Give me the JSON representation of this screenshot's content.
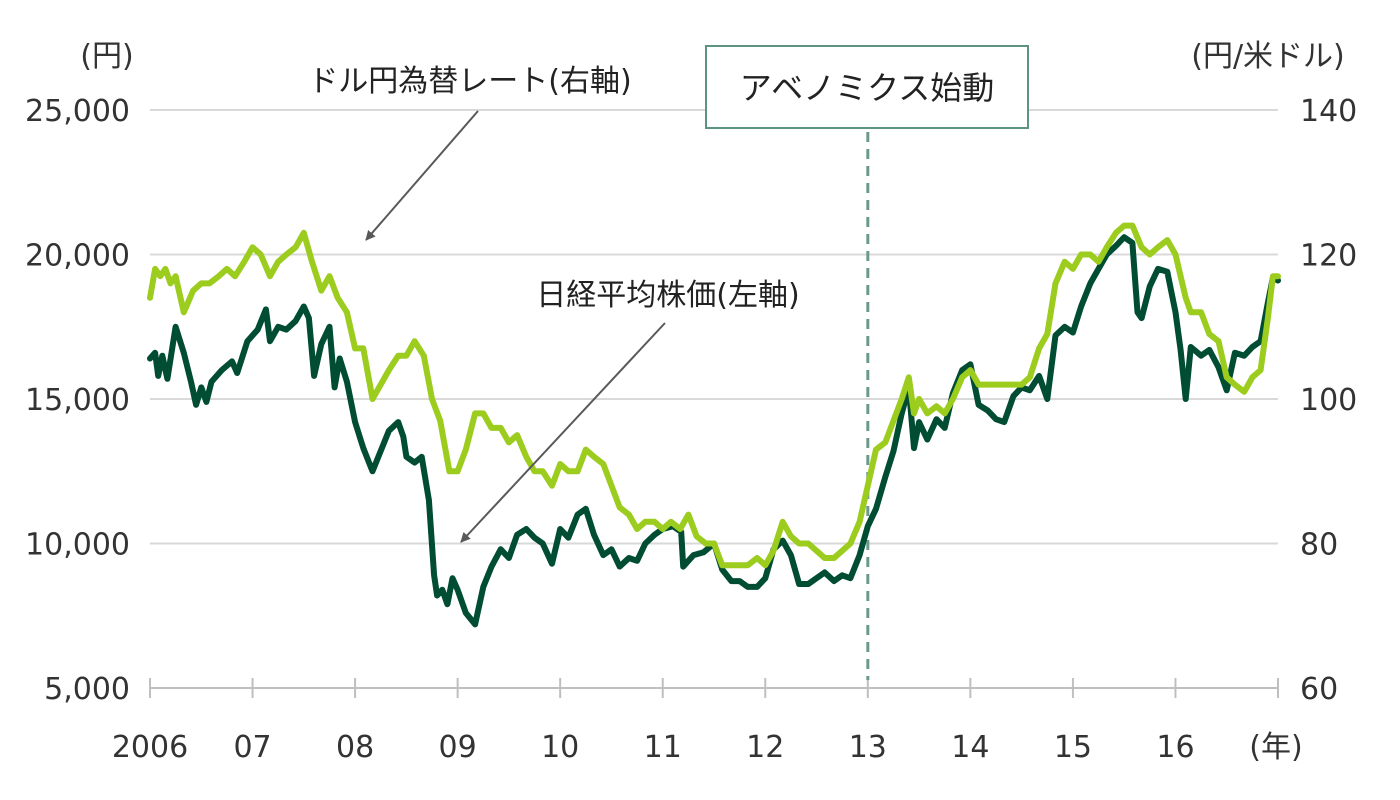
{
  "chart_data": {
    "type": "line",
    "x_unit": "(年)",
    "x_ticks": [
      "2006",
      "07",
      "08",
      "09",
      "10",
      "11",
      "12",
      "13",
      "14",
      "15",
      "16"
    ],
    "y_left": {
      "unit": "(円)",
      "ticks": [
        "5,000",
        "10,000",
        "15,000",
        "20,000",
        "25,000"
      ],
      "ylim": [
        5000,
        25000
      ]
    },
    "y_right": {
      "unit": "(円/米ドル)",
      "ticks": [
        "60",
        "80",
        "100",
        "120",
        "140"
      ],
      "ylim": [
        60,
        140
      ]
    },
    "grid": "horizontal",
    "series": [
      {
        "name": "日経平均株価(左軸)",
        "axis": "left",
        "color": "#004d33",
        "points": [
          [
            2006.0,
            16400
          ],
          [
            2006.05,
            16600
          ],
          [
            2006.08,
            15800
          ],
          [
            2006.12,
            16500
          ],
          [
            2006.17,
            15700
          ],
          [
            2006.25,
            17500
          ],
          [
            2006.33,
            16600
          ],
          [
            2006.4,
            15600
          ],
          [
            2006.45,
            14800
          ],
          [
            2006.5,
            15400
          ],
          [
            2006.55,
            14900
          ],
          [
            2006.6,
            15600
          ],
          [
            2006.7,
            16000
          ],
          [
            2006.8,
            16300
          ],
          [
            2006.85,
            15900
          ],
          [
            2006.95,
            17000
          ],
          [
            2007.05,
            17400
          ],
          [
            2007.13,
            18100
          ],
          [
            2007.17,
            17000
          ],
          [
            2007.25,
            17500
          ],
          [
            2007.33,
            17400
          ],
          [
            2007.42,
            17700
          ],
          [
            2007.5,
            18200
          ],
          [
            2007.55,
            17800
          ],
          [
            2007.6,
            15800
          ],
          [
            2007.67,
            16900
          ],
          [
            2007.75,
            17500
          ],
          [
            2007.8,
            15400
          ],
          [
            2007.85,
            16400
          ],
          [
            2007.92,
            15600
          ],
          [
            2008.0,
            14200
          ],
          [
            2008.08,
            13300
          ],
          [
            2008.17,
            12500
          ],
          [
            2008.25,
            13200
          ],
          [
            2008.33,
            13900
          ],
          [
            2008.42,
            14200
          ],
          [
            2008.47,
            13700
          ],
          [
            2008.5,
            13000
          ],
          [
            2008.58,
            12800
          ],
          [
            2008.65,
            13000
          ],
          [
            2008.72,
            11500
          ],
          [
            2008.77,
            8900
          ],
          [
            2008.8,
            8200
          ],
          [
            2008.85,
            8400
          ],
          [
            2008.9,
            7900
          ],
          [
            2008.95,
            8800
          ],
          [
            2009.0,
            8400
          ],
          [
            2009.08,
            7600
          ],
          [
            2009.17,
            7200
          ],
          [
            2009.25,
            8500
          ],
          [
            2009.33,
            9200
          ],
          [
            2009.42,
            9800
          ],
          [
            2009.5,
            9500
          ],
          [
            2009.58,
            10300
          ],
          [
            2009.67,
            10500
          ],
          [
            2009.75,
            10200
          ],
          [
            2009.83,
            10000
          ],
          [
            2009.92,
            9300
          ],
          [
            2010.0,
            10500
          ],
          [
            2010.08,
            10200
          ],
          [
            2010.17,
            11000
          ],
          [
            2010.25,
            11200
          ],
          [
            2010.33,
            10300
          ],
          [
            2010.42,
            9600
          ],
          [
            2010.5,
            9800
          ],
          [
            2010.58,
            9200
          ],
          [
            2010.67,
            9500
          ],
          [
            2010.75,
            9400
          ],
          [
            2010.83,
            10000
          ],
          [
            2010.92,
            10300
          ],
          [
            2011.0,
            10500
          ],
          [
            2011.1,
            10600
          ],
          [
            2011.18,
            10400
          ],
          [
            2011.2,
            9200
          ],
          [
            2011.3,
            9600
          ],
          [
            2011.4,
            9700
          ],
          [
            2011.5,
            10000
          ],
          [
            2011.58,
            9100
          ],
          [
            2011.67,
            8700
          ],
          [
            2011.75,
            8700
          ],
          [
            2011.83,
            8500
          ],
          [
            2011.92,
            8500
          ],
          [
            2012.0,
            8800
          ],
          [
            2012.08,
            9800
          ],
          [
            2012.17,
            10100
          ],
          [
            2012.25,
            9600
          ],
          [
            2012.33,
            8600
          ],
          [
            2012.42,
            8600
          ],
          [
            2012.5,
            8800
          ],
          [
            2012.58,
            9000
          ],
          [
            2012.67,
            8700
          ],
          [
            2012.75,
            8900
          ],
          [
            2012.83,
            8800
          ],
          [
            2012.92,
            9600
          ],
          [
            2013.0,
            10600
          ],
          [
            2013.08,
            11200
          ],
          [
            2013.17,
            12300
          ],
          [
            2013.25,
            13200
          ],
          [
            2013.33,
            14500
          ],
          [
            2013.4,
            15400
          ],
          [
            2013.45,
            13300
          ],
          [
            2013.5,
            14200
          ],
          [
            2013.58,
            13600
          ],
          [
            2013.67,
            14300
          ],
          [
            2013.75,
            14000
          ],
          [
            2013.83,
            15200
          ],
          [
            2013.92,
            16000
          ],
          [
            2014.0,
            16200
          ],
          [
            2014.08,
            14800
          ],
          [
            2014.17,
            14600
          ],
          [
            2014.25,
            14300
          ],
          [
            2014.33,
            14200
          ],
          [
            2014.42,
            15100
          ],
          [
            2014.5,
            15400
          ],
          [
            2014.58,
            15300
          ],
          [
            2014.67,
            15800
          ],
          [
            2014.75,
            15000
          ],
          [
            2014.83,
            17200
          ],
          [
            2014.92,
            17500
          ],
          [
            2015.0,
            17300
          ],
          [
            2015.08,
            18200
          ],
          [
            2015.17,
            19000
          ],
          [
            2015.25,
            19500
          ],
          [
            2015.33,
            20000
          ],
          [
            2015.42,
            20300
          ],
          [
            2015.5,
            20600
          ],
          [
            2015.58,
            20400
          ],
          [
            2015.63,
            18000
          ],
          [
            2015.67,
            17800
          ],
          [
            2015.75,
            18900
          ],
          [
            2015.83,
            19500
          ],
          [
            2015.92,
            19400
          ],
          [
            2016.0,
            18000
          ],
          [
            2016.05,
            16700
          ],
          [
            2016.1,
            15000
          ],
          [
            2016.15,
            16800
          ],
          [
            2016.25,
            16500
          ],
          [
            2016.33,
            16700
          ],
          [
            2016.42,
            16100
          ],
          [
            2016.5,
            15300
          ],
          [
            2016.58,
            16600
          ],
          [
            2016.67,
            16500
          ],
          [
            2016.75,
            16800
          ],
          [
            2016.83,
            17000
          ],
          [
            2016.9,
            18300
          ],
          [
            2016.95,
            19200
          ],
          [
            2017.0,
            19100
          ]
        ]
      },
      {
        "name": "ドル円為替レート(右軸)",
        "axis": "right",
        "color": "#9ccc1e",
        "points": [
          [
            2006.0,
            114
          ],
          [
            2006.05,
            118
          ],
          [
            2006.1,
            117
          ],
          [
            2006.15,
            118
          ],
          [
            2006.2,
            116
          ],
          [
            2006.25,
            117
          ],
          [
            2006.33,
            112
          ],
          [
            2006.42,
            115
          ],
          [
            2006.5,
            116
          ],
          [
            2006.58,
            116
          ],
          [
            2006.67,
            117
          ],
          [
            2006.75,
            118
          ],
          [
            2006.83,
            117
          ],
          [
            2006.92,
            119
          ],
          [
            2007.0,
            121
          ],
          [
            2007.08,
            120
          ],
          [
            2007.17,
            117
          ],
          [
            2007.25,
            119
          ],
          [
            2007.33,
            120
          ],
          [
            2007.42,
            121
          ],
          [
            2007.5,
            123
          ],
          [
            2007.58,
            119
          ],
          [
            2007.67,
            115
          ],
          [
            2007.75,
            117
          ],
          [
            2007.83,
            114
          ],
          [
            2007.92,
            112
          ],
          [
            2008.0,
            107
          ],
          [
            2008.08,
            107
          ],
          [
            2008.17,
            100
          ],
          [
            2008.25,
            102
          ],
          [
            2008.33,
            104
          ],
          [
            2008.42,
            106
          ],
          [
            2008.5,
            106
          ],
          [
            2008.58,
            108
          ],
          [
            2008.67,
            106
          ],
          [
            2008.75,
            100
          ],
          [
            2008.83,
            97
          ],
          [
            2008.92,
            90
          ],
          [
            2009.0,
            90
          ],
          [
            2009.08,
            93
          ],
          [
            2009.17,
            98
          ],
          [
            2009.25,
            98
          ],
          [
            2009.33,
            96
          ],
          [
            2009.42,
            96
          ],
          [
            2009.5,
            94
          ],
          [
            2009.58,
            95
          ],
          [
            2009.67,
            92
          ],
          [
            2009.75,
            90
          ],
          [
            2009.83,
            90
          ],
          [
            2009.92,
            88
          ],
          [
            2010.0,
            91
          ],
          [
            2010.08,
            90
          ],
          [
            2010.17,
            90
          ],
          [
            2010.25,
            93
          ],
          [
            2010.33,
            92
          ],
          [
            2010.42,
            91
          ],
          [
            2010.5,
            88
          ],
          [
            2010.58,
            85
          ],
          [
            2010.67,
            84
          ],
          [
            2010.75,
            82
          ],
          [
            2010.83,
            83
          ],
          [
            2010.92,
            83
          ],
          [
            2011.0,
            82
          ],
          [
            2011.08,
            83
          ],
          [
            2011.17,
            82
          ],
          [
            2011.25,
            84
          ],
          [
            2011.33,
            81
          ],
          [
            2011.42,
            80
          ],
          [
            2011.5,
            80
          ],
          [
            2011.58,
            77
          ],
          [
            2011.67,
            77
          ],
          [
            2011.75,
            77
          ],
          [
            2011.83,
            77
          ],
          [
            2011.92,
            78
          ],
          [
            2012.0,
            77
          ],
          [
            2012.08,
            79
          ],
          [
            2012.17,
            83
          ],
          [
            2012.25,
            81
          ],
          [
            2012.33,
            80
          ],
          [
            2012.42,
            80
          ],
          [
            2012.5,
            79
          ],
          [
            2012.58,
            78
          ],
          [
            2012.67,
            78
          ],
          [
            2012.75,
            79
          ],
          [
            2012.83,
            80
          ],
          [
            2012.92,
            83
          ],
          [
            2013.0,
            88
          ],
          [
            2013.08,
            93
          ],
          [
            2013.17,
            94
          ],
          [
            2013.25,
            97
          ],
          [
            2013.33,
            100
          ],
          [
            2013.4,
            103
          ],
          [
            2013.45,
            98
          ],
          [
            2013.5,
            100
          ],
          [
            2013.58,
            98
          ],
          [
            2013.67,
            99
          ],
          [
            2013.75,
            98
          ],
          [
            2013.83,
            100
          ],
          [
            2013.92,
            103
          ],
          [
            2014.0,
            104
          ],
          [
            2014.08,
            102
          ],
          [
            2014.17,
            102
          ],
          [
            2014.25,
            102
          ],
          [
            2014.33,
            102
          ],
          [
            2014.42,
            102
          ],
          [
            2014.5,
            102
          ],
          [
            2014.58,
            103
          ],
          [
            2014.67,
            107
          ],
          [
            2014.75,
            109
          ],
          [
            2014.83,
            116
          ],
          [
            2014.92,
            119
          ],
          [
            2015.0,
            118
          ],
          [
            2015.08,
            120
          ],
          [
            2015.17,
            120
          ],
          [
            2015.25,
            119
          ],
          [
            2015.33,
            121
          ],
          [
            2015.42,
            123
          ],
          [
            2015.5,
            124
          ],
          [
            2015.58,
            124
          ],
          [
            2015.67,
            121
          ],
          [
            2015.75,
            120
          ],
          [
            2015.83,
            121
          ],
          [
            2015.92,
            122
          ],
          [
            2016.0,
            120
          ],
          [
            2016.05,
            117
          ],
          [
            2016.1,
            114
          ],
          [
            2016.15,
            112
          ],
          [
            2016.25,
            112
          ],
          [
            2016.33,
            109
          ],
          [
            2016.42,
            108
          ],
          [
            2016.5,
            103
          ],
          [
            2016.58,
            102
          ],
          [
            2016.67,
            101
          ],
          [
            2016.75,
            103
          ],
          [
            2016.83,
            104
          ],
          [
            2016.9,
            111
          ],
          [
            2016.95,
            117
          ],
          [
            2017.0,
            117
          ]
        ]
      }
    ],
    "annotations": [
      {
        "id": "yen",
        "text": "ドル円為替レート(右軸)"
      },
      {
        "id": "nikkei",
        "text": "日経平均株価(左軸)"
      },
      {
        "id": "abenomics",
        "text": "アベノミクス始動",
        "x": 2013.0
      }
    ],
    "colors": {
      "grid": "#d9d9d9",
      "axis": "#bfbfbf",
      "arrow": "#595959",
      "vline": "#6b9a8a",
      "box_border": "#5d9480"
    }
  }
}
